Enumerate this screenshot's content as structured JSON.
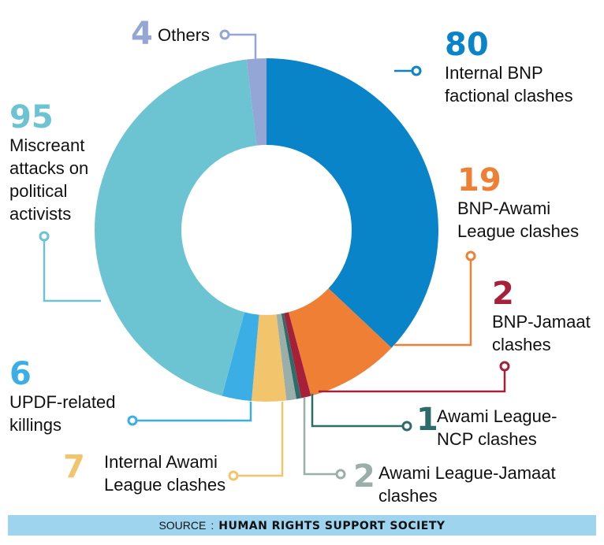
{
  "chart_data": {
    "type": "donut",
    "slices": [
      {
        "value": 80,
        "label": "Internal BNP\nfactional clashes",
        "color": "#0a84c9"
      },
      {
        "value": 19,
        "label": "BNP-Awami\nLeague clashes",
        "color": "#ef7f35"
      },
      {
        "value": 2,
        "label": "BNP-Jamaat\nclashes",
        "color": "#a7203a"
      },
      {
        "value": 1,
        "label": "Awami League-\nNCP clashes",
        "color": "#2e6b6b"
      },
      {
        "value": 2,
        "label": "Awami League-Jamaat\nclashes",
        "color": "#9bafaa"
      },
      {
        "value": 7,
        "label": "Internal Awami\nLeague clashes",
        "color": "#f2c46b"
      },
      {
        "value": 6,
        "label": "UPDF-related\nkillings",
        "color": "#3baee5"
      },
      {
        "value": 95,
        "label": "Miscreant\nattacks on\npolitical\nactivists",
        "color": "#6cc4d3"
      },
      {
        "value": 4,
        "label": "Others",
        "color": "#93a6d6"
      }
    ]
  },
  "source": {
    "prefix": "SOURCE",
    "separator": ":",
    "name": "HUMAN RIGHTS SUPPORT SOCIETY"
  }
}
